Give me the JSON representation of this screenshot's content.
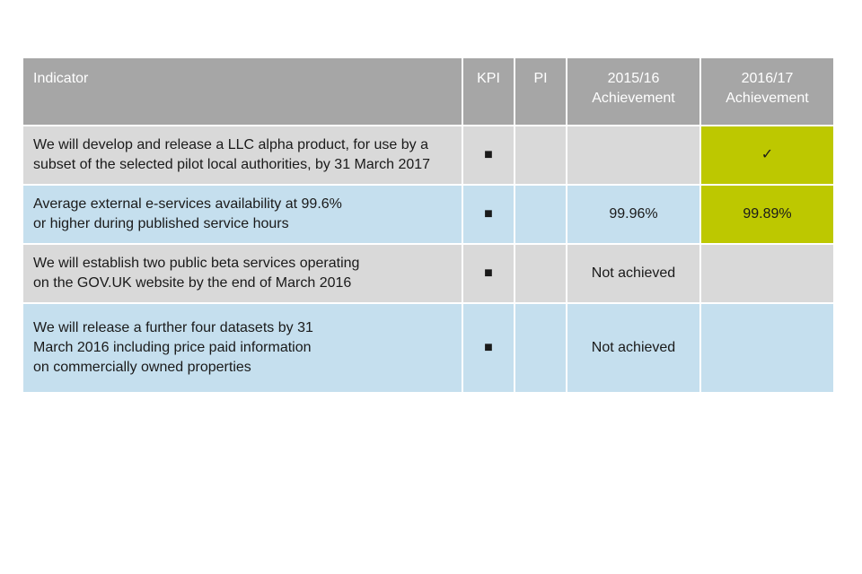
{
  "table": {
    "header": [
      "Indicator",
      "KPI",
      "PI",
      "2015/16\nAchievement",
      "2016/17\nAchievement"
    ],
    "rows": [
      {
        "indicator": "We will develop and release a LLC alpha product, for use by a\nsubset of the selected pilot local authorities, by 31 March 2017",
        "kpi": "■",
        "achievement_2016_17": "✓"
      },
      {
        "indicator": "Average external e-services availability at 99.6%\nor higher during published service hours",
        "kpi": "■",
        "achievement_2015_16": "99.96%",
        "achievement_2016_17": "99.89%"
      },
      {
        "indicator": "We will establish two public beta services operating\non the GOV.UK website by the end of March 2016",
        "kpi": "■",
        "achievement_2015_16": "Not achieved"
      },
      {
        "indicator": "We will release a further four datasets by 31\nMarch 2016 including price paid information\non commercially owned properties",
        "kpi": "■",
        "achievement_2015_16": "Not achieved"
      }
    ]
  }
}
